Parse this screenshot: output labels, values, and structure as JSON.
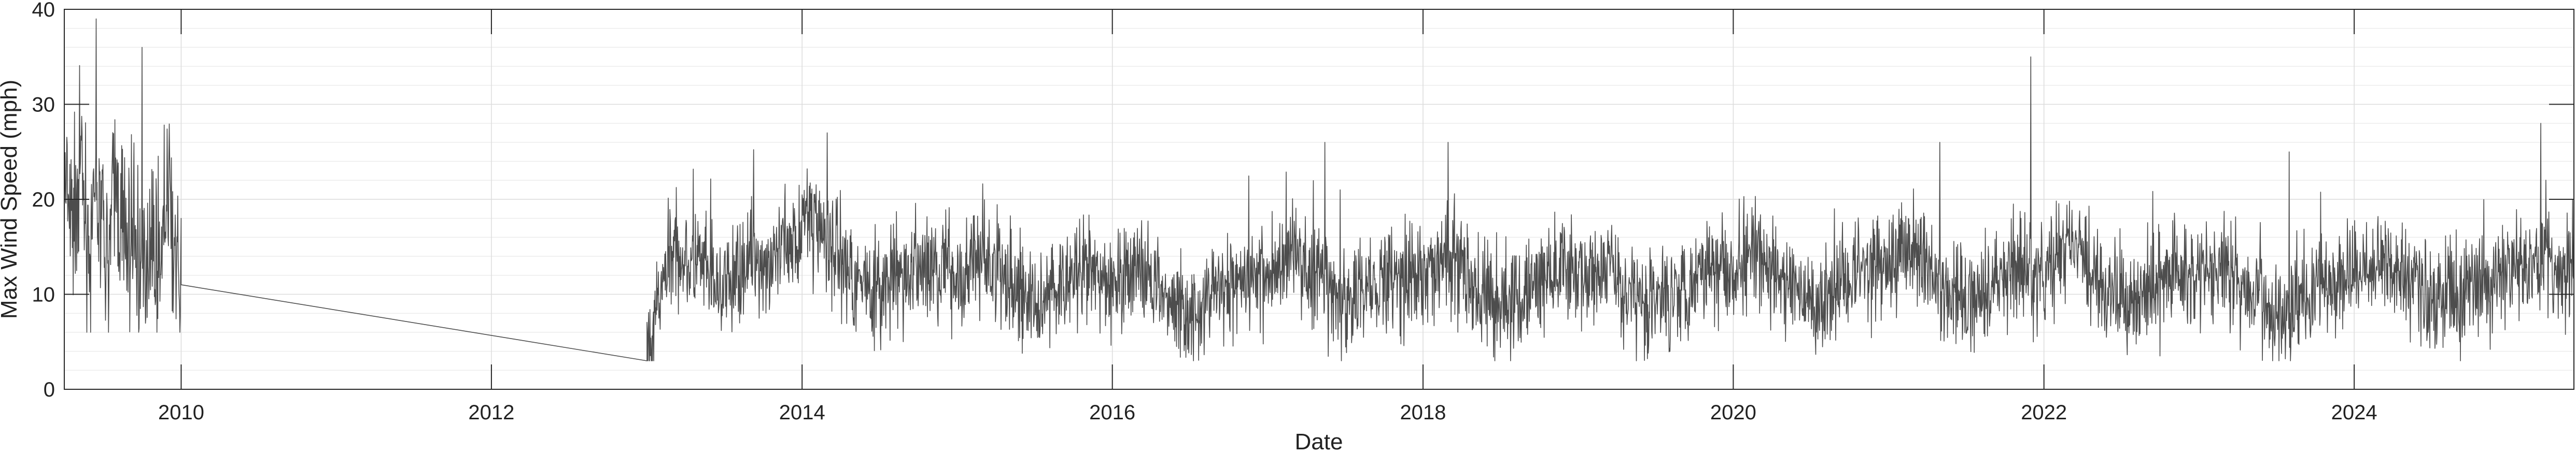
{
  "chart_data": {
    "type": "line",
    "title": "",
    "xlabel": "Date",
    "ylabel": "Max Wind Speed (mph)",
    "xlim": [
      "2009-04-01",
      "2025-06-01"
    ],
    "ylim": [
      0,
      40
    ],
    "x_ticks": [
      "2010",
      "2012",
      "2014",
      "2016",
      "2018",
      "2020",
      "2022",
      "2024"
    ],
    "y_ticks": [
      "0",
      "10",
      "20",
      "30",
      "40"
    ],
    "grid": true,
    "minor_grid": true,
    "legend": "none",
    "line_color": "#4d4d4d",
    "series": [
      {
        "x": [
          "2009-04-01",
          "2009-04-20",
          "2009-05-10",
          "2009-06-01",
          "2009-06-20",
          "2009-07-10",
          "2009-08-01",
          "2009-08-20",
          "2009-09-10",
          "2009-10-01",
          "2009-10-20",
          "2009-11-10",
          "2009-12-01",
          "2009-12-20",
          "2010-01-01",
          "2013-01-01",
          "2013-03-01",
          "2013-05-01",
          "2013-07-01",
          "2013-09-01",
          "2013-11-01",
          "2014-01-01",
          "2014-03-01",
          "2014-05-01",
          "2014-07-01",
          "2014-09-01",
          "2014-11-01",
          "2015-01-01",
          "2015-03-01",
          "2015-05-01",
          "2015-07-01",
          "2015-09-01",
          "2015-11-01",
          "2016-01-01",
          "2016-03-01",
          "2016-05-01",
          "2016-07-01",
          "2016-09-01",
          "2016-11-01",
          "2017-01-01",
          "2017-03-01",
          "2017-05-01",
          "2017-07-01",
          "2017-09-01",
          "2017-11-01",
          "2018-01-01",
          "2018-03-01",
          "2018-05-01",
          "2018-07-01",
          "2018-09-01",
          "2018-11-01",
          "2019-01-01",
          "2019-03-01",
          "2019-05-01",
          "2019-07-01",
          "2019-09-01",
          "2019-11-01",
          "2020-01-01",
          "2020-03-01",
          "2020-05-01",
          "2020-07-01",
          "2020-09-01",
          "2020-11-01",
          "2021-01-01",
          "2021-03-01",
          "2021-05-01",
          "2021-07-01",
          "2021-09-01",
          "2021-11-01",
          "2022-01-01",
          "2022-03-01",
          "2022-05-01",
          "2022-07-01",
          "2022-09-01",
          "2022-11-01",
          "2023-01-01",
          "2023-03-01",
          "2023-05-01",
          "2023-07-01",
          "2023-09-01",
          "2023-11-01",
          "2024-01-01",
          "2024-03-01",
          "2024-05-01",
          "2024-07-01",
          "2024-09-01",
          "2024-11-01",
          "2025-01-01",
          "2025-03-01",
          "2025-05-01",
          "2025-06-01"
        ],
        "y": [
          21,
          17,
          24,
          14,
          19,
          13,
          22,
          15,
          17,
          12,
          16,
          14,
          20,
          13,
          11,
          3,
          15,
          13,
          10,
          14,
          13,
          18,
          16,
          12,
          10,
          12,
          13,
          12,
          14,
          11,
          9,
          11,
          12,
          11,
          13,
          10,
          8,
          10,
          12,
          12,
          15,
          11,
          9,
          11,
          12,
          12,
          14,
          11,
          9,
          10,
          12,
          12,
          13,
          10,
          9,
          11,
          13,
          13,
          14,
          11,
          9,
          11,
          13,
          13,
          15,
          11,
          9,
          11,
          13,
          11,
          16,
          12,
          9,
          10,
          12,
          12,
          13,
          10,
          8,
          10,
          11,
          12,
          14,
          12,
          9,
          10,
          11,
          12,
          14,
          12,
          13
        ],
        "peaks": [
          {
            "x": "2009-06-15",
            "y": 39
          },
          {
            "x": "2009-10-01",
            "y": 36
          },
          {
            "x": "2014-03-01",
            "y": 27
          },
          {
            "x": "2017-05-15",
            "y": 26
          },
          {
            "x": "2018-03-01",
            "y": 26
          },
          {
            "x": "2021-05-01",
            "y": 26
          },
          {
            "x": "2021-12-01",
            "y": 35
          },
          {
            "x": "2023-08-01",
            "y": 25
          },
          {
            "x": "2025-03-15",
            "y": 28
          }
        ],
        "typical_range": [
          3,
          24
        ]
      }
    ]
  }
}
